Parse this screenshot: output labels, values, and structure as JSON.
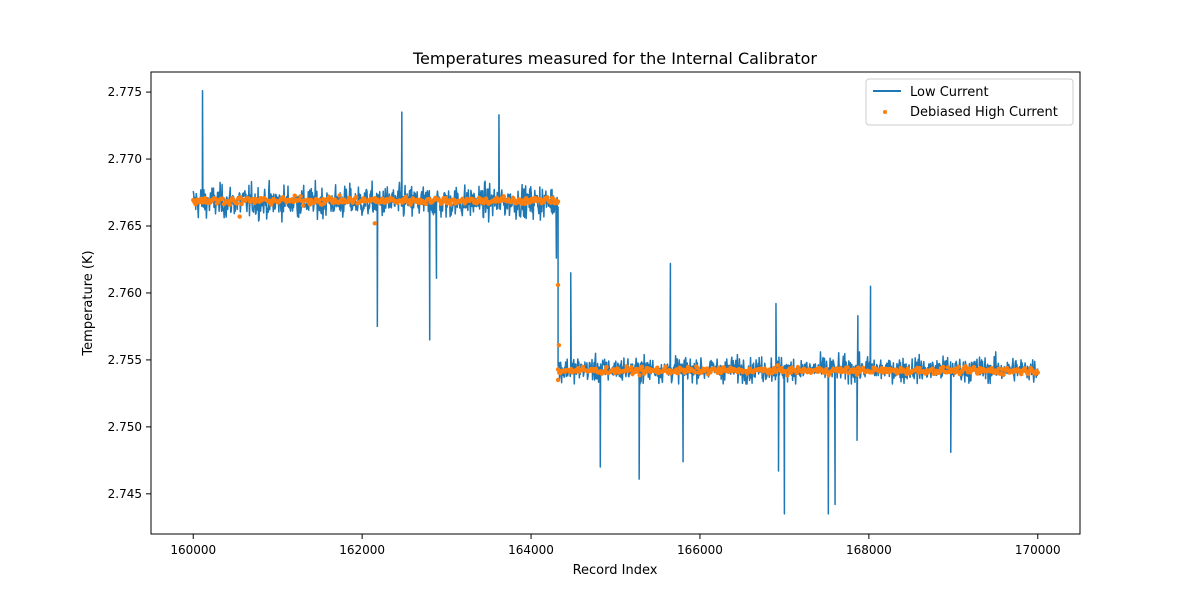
{
  "chart_data": {
    "type": "line",
    "title": "Temperatures measured for the Internal Calibrator",
    "xlabel": "Record Index",
    "ylabel": "Temperature (K)",
    "xlim": [
      159500,
      170500
    ],
    "ylim": [
      2.742,
      2.7765
    ],
    "x_ticks": [
      160000,
      162000,
      164000,
      166000,
      168000,
      170000
    ],
    "y_ticks": [
      2.745,
      2.75,
      2.755,
      2.76,
      2.765,
      2.77,
      2.775
    ],
    "x_tick_labels": [
      "160000",
      "162000",
      "164000",
      "166000",
      "168000",
      "170000"
    ],
    "y_tick_labels": [
      "2.745",
      "2.750",
      "2.755",
      "2.760",
      "2.765",
      "2.770",
      "2.775"
    ],
    "legend": {
      "placement": "top-right",
      "entries": [
        "Low Current",
        "Debiased High Current"
      ]
    },
    "grid": false,
    "colors": {
      "low_current": "#1f77b4",
      "debiased_high_current": "#ff7f0e"
    },
    "series": [
      {
        "name": "Low Current",
        "style": "line",
        "segments": [
          {
            "x_range": [
              160000,
              164320
            ],
            "mean": 2.7668,
            "noise_band": [
              2.7653,
              2.7684
            ]
          },
          {
            "x_range": [
              164320,
              170000
            ],
            "mean": 2.7543,
            "noise_band": [
              2.7532,
              2.7556
            ]
          }
        ],
        "spikes": [
          {
            "x": 160110,
            "y": 2.7751
          },
          {
            "x": 162180,
            "y": 2.7575
          },
          {
            "x": 162470,
            "y": 2.7735
          },
          {
            "x": 162800,
            "y": 2.7565
          },
          {
            "x": 162880,
            "y": 2.7611
          },
          {
            "x": 163620,
            "y": 2.7733
          },
          {
            "x": 164300,
            "y": 2.7626
          },
          {
            "x": 164470,
            "y": 2.7615
          },
          {
            "x": 164820,
            "y": 2.747
          },
          {
            "x": 165280,
            "y": 2.7461
          },
          {
            "x": 165650,
            "y": 2.7622
          },
          {
            "x": 165800,
            "y": 2.7474
          },
          {
            "x": 166900,
            "y": 2.7592
          },
          {
            "x": 166930,
            "y": 2.7467
          },
          {
            "x": 167000,
            "y": 2.7435
          },
          {
            "x": 167520,
            "y": 2.7435
          },
          {
            "x": 167600,
            "y": 2.7442
          },
          {
            "x": 167860,
            "y": 2.749
          },
          {
            "x": 167870,
            "y": 2.7583
          },
          {
            "x": 168020,
            "y": 2.7605
          },
          {
            "x": 168970,
            "y": 2.7481
          }
        ]
      },
      {
        "name": "Debiased High Current",
        "style": "scatter",
        "segments": [
          {
            "x_range": [
              160000,
              164320
            ],
            "mean": 2.7669,
            "noise_band": [
              2.7664,
              2.7673
            ]
          },
          {
            "x_range": [
              164320,
              170000
            ],
            "mean": 2.7542,
            "noise_band": [
              2.7538,
              2.7546
            ]
          }
        ],
        "outliers": [
          {
            "x": 160550,
            "y": 2.7657
          },
          {
            "x": 162150,
            "y": 2.7652
          },
          {
            "x": 164320,
            "y": 2.7606
          },
          {
            "x": 164330,
            "y": 2.7561
          },
          {
            "x": 164320,
            "y": 2.7535
          }
        ]
      }
    ]
  }
}
